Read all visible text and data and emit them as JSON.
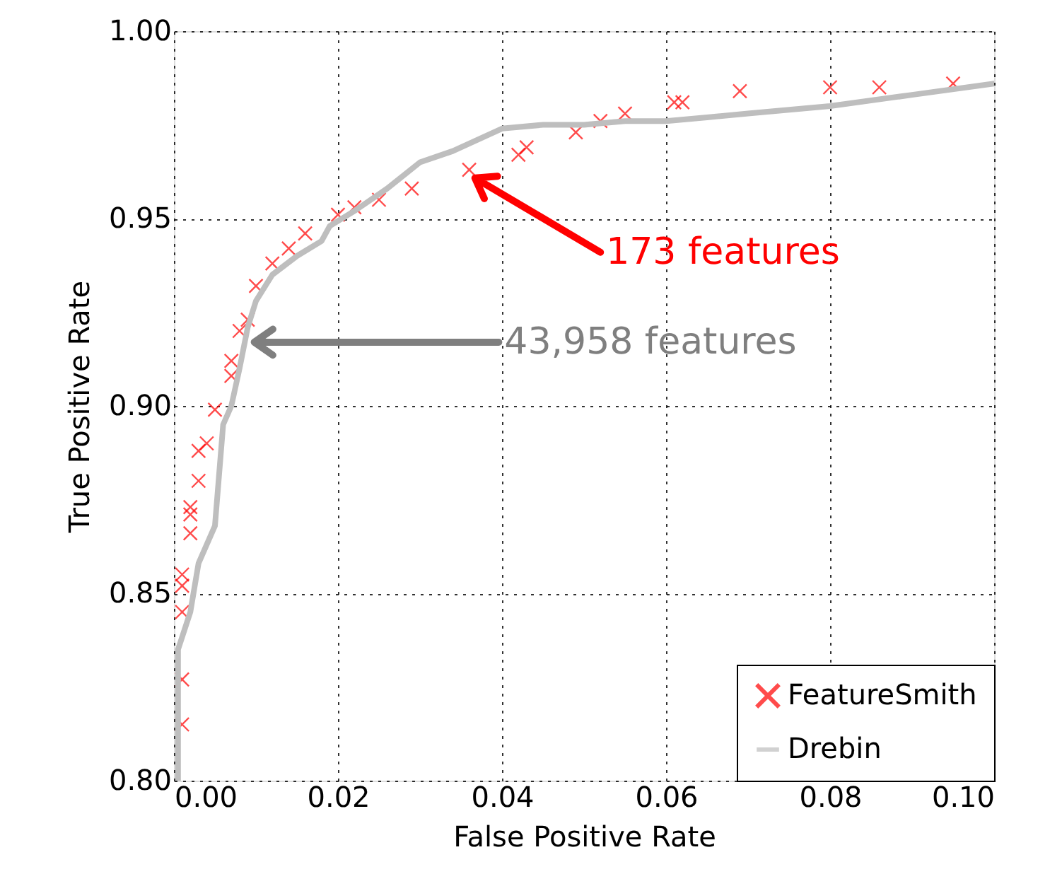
{
  "chart_data": {
    "type": "scatter",
    "xlabel": "False Positive Rate",
    "ylabel": "True Positive Rate",
    "xlim": [
      0.0,
      0.1
    ],
    "xticks": [
      {
        "value": 0,
        "label": "0.00"
      },
      0.02,
      0.04,
      0.06,
      0.08,
      {
        "value": 0.1,
        "label": "0.10"
      }
    ],
    "ylim": [
      0.8,
      1.0
    ],
    "yticks": [
      {
        "value": 0.8,
        "label": "0.80"
      },
      0.85,
      {
        "value": 0.9,
        "label": "0.90"
      },
      0.95,
      {
        "value": 1.0,
        "label": "1.00"
      }
    ],
    "grid": true,
    "legend": "bottom right",
    "series": [
      {
        "name": "FeatureSmith",
        "marker": "cross",
        "color": "#ff0000",
        "x": [
          0.001,
          0.001,
          0.001,
          0.001,
          0.001,
          0.002,
          0.002,
          0.002,
          0.003,
          0.003,
          0.004,
          0.005,
          0.007,
          0.007,
          0.008,
          0.009,
          0.01,
          0.012,
          0.014,
          0.016,
          0.02,
          0.022,
          0.025,
          0.029,
          0.036,
          0.042,
          0.043,
          0.049,
          0.052,
          0.055,
          0.061,
          0.062,
          0.069,
          0.08,
          0.086,
          0.095
        ],
        "values": [
          0.815,
          0.827,
          0.845,
          0.852,
          0.855,
          0.866,
          0.871,
          0.873,
          0.88,
          0.888,
          0.89,
          0.899,
          0.908,
          0.912,
          0.92,
          0.923,
          0.932,
          0.938,
          0.942,
          0.946,
          0.951,
          0.953,
          0.955,
          0.958,
          0.963,
          0.967,
          0.969,
          0.973,
          0.976,
          0.978,
          0.981,
          0.981,
          0.984,
          0.985,
          0.985,
          0.986
        ]
      },
      {
        "name": "Drebin",
        "type": "line",
        "color": "#bebebe",
        "x": [
          0.0005,
          0.0005,
          0.002,
          0.003,
          0.005,
          0.006,
          0.007,
          0.008,
          0.009,
          0.01,
          0.012,
          0.015,
          0.018,
          0.019,
          0.022,
          0.026,
          0.03,
          0.034,
          0.04,
          0.045,
          0.05,
          0.055,
          0.06,
          0.065,
          0.07,
          0.08,
          0.09,
          0.1
        ],
        "values": [
          0.8,
          0.835,
          0.845,
          0.858,
          0.868,
          0.895,
          0.9,
          0.91,
          0.921,
          0.928,
          0.935,
          0.94,
          0.944,
          0.948,
          0.952,
          0.958,
          0.965,
          0.968,
          0.974,
          0.975,
          0.975,
          0.976,
          0.976,
          0.977,
          0.978,
          0.98,
          0.983,
          0.986
        ]
      }
    ],
    "annotations": [
      "173 features",
      "43,958 features"
    ]
  }
}
